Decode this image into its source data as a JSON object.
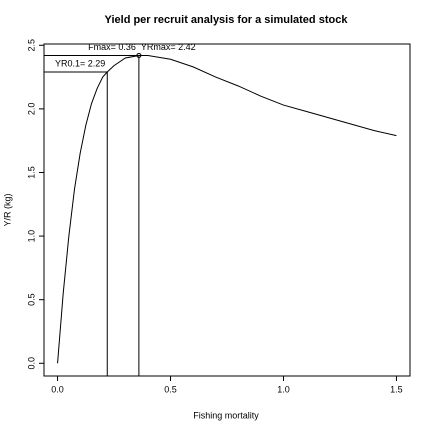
{
  "chart_data": {
    "type": "line",
    "title": "Yield per recruit analysis for a simulated stock",
    "x_label": "Fishing mortality",
    "y_label": "Y/R (kg)",
    "x": [
      0,
      0.025,
      0.05,
      0.075,
      0.1,
      0.125,
      0.15,
      0.175,
      0.2,
      0.22,
      0.25,
      0.3,
      0.36,
      0.4,
      0.5,
      0.6,
      0.7,
      0.8,
      0.9,
      1.0,
      1.1,
      1.2,
      1.3,
      1.4,
      1.5
    ],
    "values": [
      0,
      0.55,
      1.0,
      1.37,
      1.65,
      1.87,
      2.04,
      2.16,
      2.25,
      2.29,
      2.34,
      2.4,
      2.42,
      2.42,
      2.39,
      2.33,
      2.25,
      2.18,
      2.1,
      2.03,
      1.98,
      1.93,
      1.88,
      1.83,
      1.79
    ],
    "color": "#000000",
    "xlim": [
      -0.06,
      1.56
    ],
    "ylim": [
      -0.1,
      2.51
    ],
    "xticks": [
      {
        "value": 0,
        "label": "0.0"
      },
      0.5,
      {
        "value": 1,
        "label": "1.0"
      },
      1.5
    ],
    "yticks": [
      {
        "value": 0,
        "label": "0.0"
      },
      0.5,
      {
        "value": 1,
        "label": "1.0"
      },
      1.5,
      {
        "value": 2,
        "label": "2.0"
      },
      2.5
    ],
    "reference_points": [
      {
        "x": 0.22,
        "y": 2.29,
        "label": "YR0.1= 2.29"
      },
      {
        "x": 0.36,
        "y": 2.42,
        "x_label": "Fmax= 0.36",
        "label": "YRmax= 2.42",
        "marker": true
      }
    ]
  }
}
